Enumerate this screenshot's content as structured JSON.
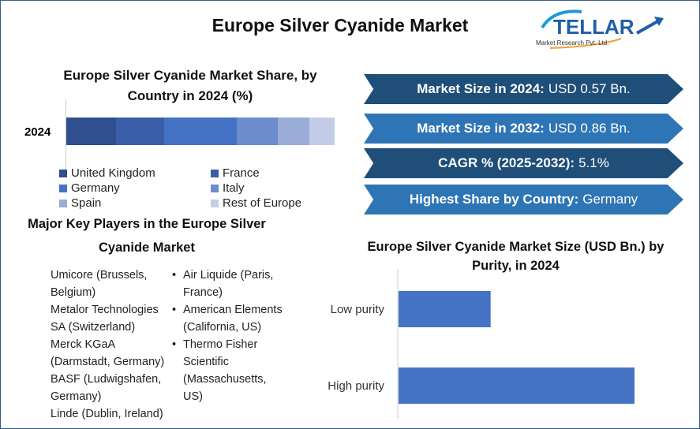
{
  "title": "Europe Silver Cyanide Market",
  "logo": {
    "text": "STELLAR",
    "tagline": "Market Research Pvt. Ltd."
  },
  "stats": [
    {
      "label": "Market Size in 2024:",
      "value": "USD 0.57 Bn.",
      "color": "#1f4e79"
    },
    {
      "label": "Market Size in 2032:",
      "value": "USD 0.86 Bn.",
      "color": "#2e75b6"
    },
    {
      "label": "CAGR % (2025-2032):",
      "value": "5.1%",
      "color": "#1f4e79"
    },
    {
      "label": "Highest Share by Country:",
      "value": "Germany",
      "color": "#2e75b6"
    }
  ],
  "players": {
    "title": "Major Key Players in the Europe Silver Cyanide Market",
    "left": [
      "Umicore (Brussels, Belgium)",
      "Metalor Technologies SA (Switzerland)",
      "Merck KGaA (Darmstadt, Germany)",
      "BASF (Ludwigshafen, Germany)",
      "Linde (Dublin, Ireland)"
    ],
    "right": [
      "Air Liquide (Paris, France)",
      "American Elements (California, US)",
      "Thermo Fisher Scientific (Massachusetts, US)"
    ]
  },
  "chart_data": [
    {
      "type": "bar",
      "stacked": true,
      "orientation": "horizontal",
      "title": "Europe Silver Cyanide Market Share, by Country in 2024 (%)",
      "categories": [
        "2024"
      ],
      "series": [
        {
          "name": "United Kingdom",
          "values": [
            18.5
          ],
          "color": "#2f4f8f"
        },
        {
          "name": "France",
          "values": [
            18
          ],
          "color": "#3a5ea8"
        },
        {
          "name": "Germany",
          "values": [
            27
          ],
          "color": "#4472c4"
        },
        {
          "name": "Italy",
          "values": [
            15.3
          ],
          "color": "#6d8ccc"
        },
        {
          "name": "Spain",
          "values": [
            11.8
          ],
          "color": "#9aacd8"
        },
        {
          "name": "Rest of Europe",
          "values": [
            9.4
          ],
          "color": "#c3cde8"
        }
      ],
      "legend": "bottom"
    },
    {
      "type": "bar",
      "orientation": "horizontal",
      "title": "Europe Silver Cyanide Market Size (USD Bn.) by Purity, in 2024",
      "categories": [
        "Low purity",
        "High purity"
      ],
      "values": [
        0.16,
        0.41
      ],
      "color": "#4472c4"
    }
  ]
}
